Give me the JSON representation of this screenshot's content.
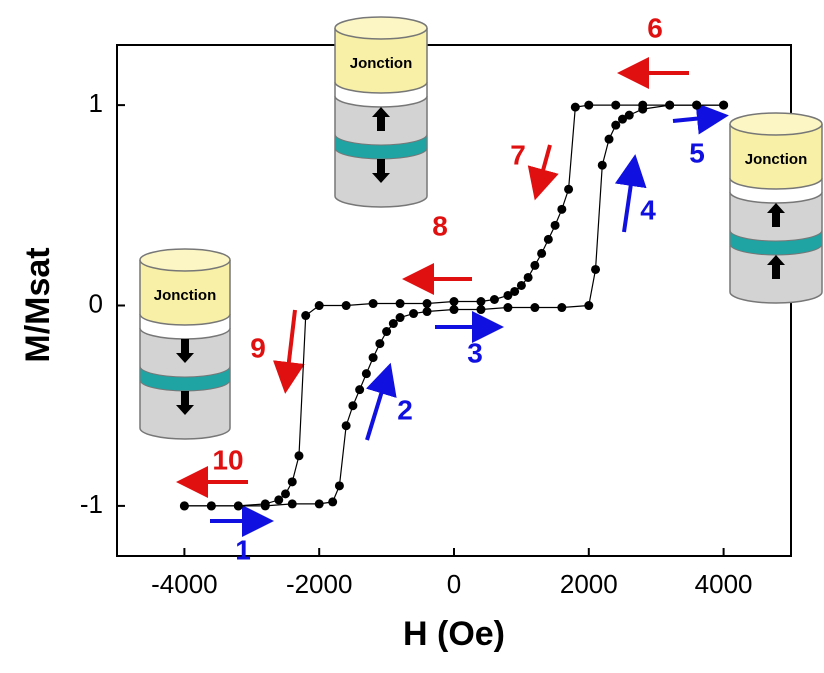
{
  "chart_data": {
    "type": "line",
    "xlabel": "H (Oe)",
    "ylabel": "M/Msat",
    "xlim": [
      -5000,
      5000
    ],
    "ylim": [
      -1.25,
      1.3
    ],
    "xticks": [
      -4000,
      -2000,
      0,
      2000,
      4000
    ],
    "yticks": [
      -1,
      0,
      1
    ],
    "series": [
      {
        "color": "#000000",
        "x": [
          4000,
          3600,
          3200,
          2800,
          2400,
          2000,
          1800,
          1700,
          1600,
          1500,
          1400,
          1300,
          1200,
          1100,
          1000,
          900,
          800,
          600,
          400,
          0,
          -400,
          -800,
          -1200,
          -1600,
          -2000,
          -2200,
          -2300,
          -2400,
          -2500,
          -2600,
          -2800,
          -3200,
          -3600,
          -4000
        ],
        "values": [
          1,
          1,
          1,
          1,
          1,
          1,
          0.99,
          0.58,
          0.48,
          0.4,
          0.33,
          0.26,
          0.2,
          0.14,
          0.1,
          0.07,
          0.05,
          0.03,
          0.02,
          0.02,
          0.01,
          0.01,
          0.01,
          0,
          0,
          -0.05,
          -0.75,
          -0.88,
          -0.94,
          -0.97,
          -0.99,
          -1,
          -1,
          -1
        ]
      },
      {
        "color": "#000000",
        "x": [
          -4000,
          -3600,
          -3200,
          -2800,
          -2400,
          -2000,
          -1800,
          -1700,
          -1600,
          -1500,
          -1400,
          -1300,
          -1200,
          -1100,
          -1000,
          -900,
          -800,
          -600,
          -400,
          0,
          400,
          800,
          1200,
          1600,
          2000,
          2100,
          2200,
          2300,
          2400,
          2500,
          2600,
          2800,
          3200,
          3600,
          4000
        ],
        "values": [
          -1,
          -1,
          -1,
          -1,
          -0.99,
          -0.99,
          -0.98,
          -0.9,
          -0.6,
          -0.5,
          -0.42,
          -0.34,
          -0.26,
          -0.19,
          -0.13,
          -0.09,
          -0.06,
          -0.04,
          -0.03,
          -0.02,
          -0.02,
          -0.01,
          -0.01,
          -0.01,
          0,
          0.18,
          0.7,
          0.83,
          0.9,
          0.93,
          0.95,
          0.98,
          1,
          1,
          1
        ]
      }
    ],
    "annotations": [
      {
        "text": "1",
        "color": "#1010e0"
      },
      {
        "text": "2",
        "color": "#1010e0"
      },
      {
        "text": "3",
        "color": "#1010e0"
      },
      {
        "text": "4",
        "color": "#1010e0"
      },
      {
        "text": "5",
        "color": "#1010e0"
      },
      {
        "text": "6",
        "color": "#e01010"
      },
      {
        "text": "7",
        "color": "#e01010"
      },
      {
        "text": "8",
        "color": "#e01010"
      },
      {
        "text": "9",
        "color": "#e01010"
      },
      {
        "text": "10",
        "color": "#e01010"
      }
    ],
    "icon_labels": [
      "Jonction",
      "Jonction",
      "Jonction"
    ]
  }
}
